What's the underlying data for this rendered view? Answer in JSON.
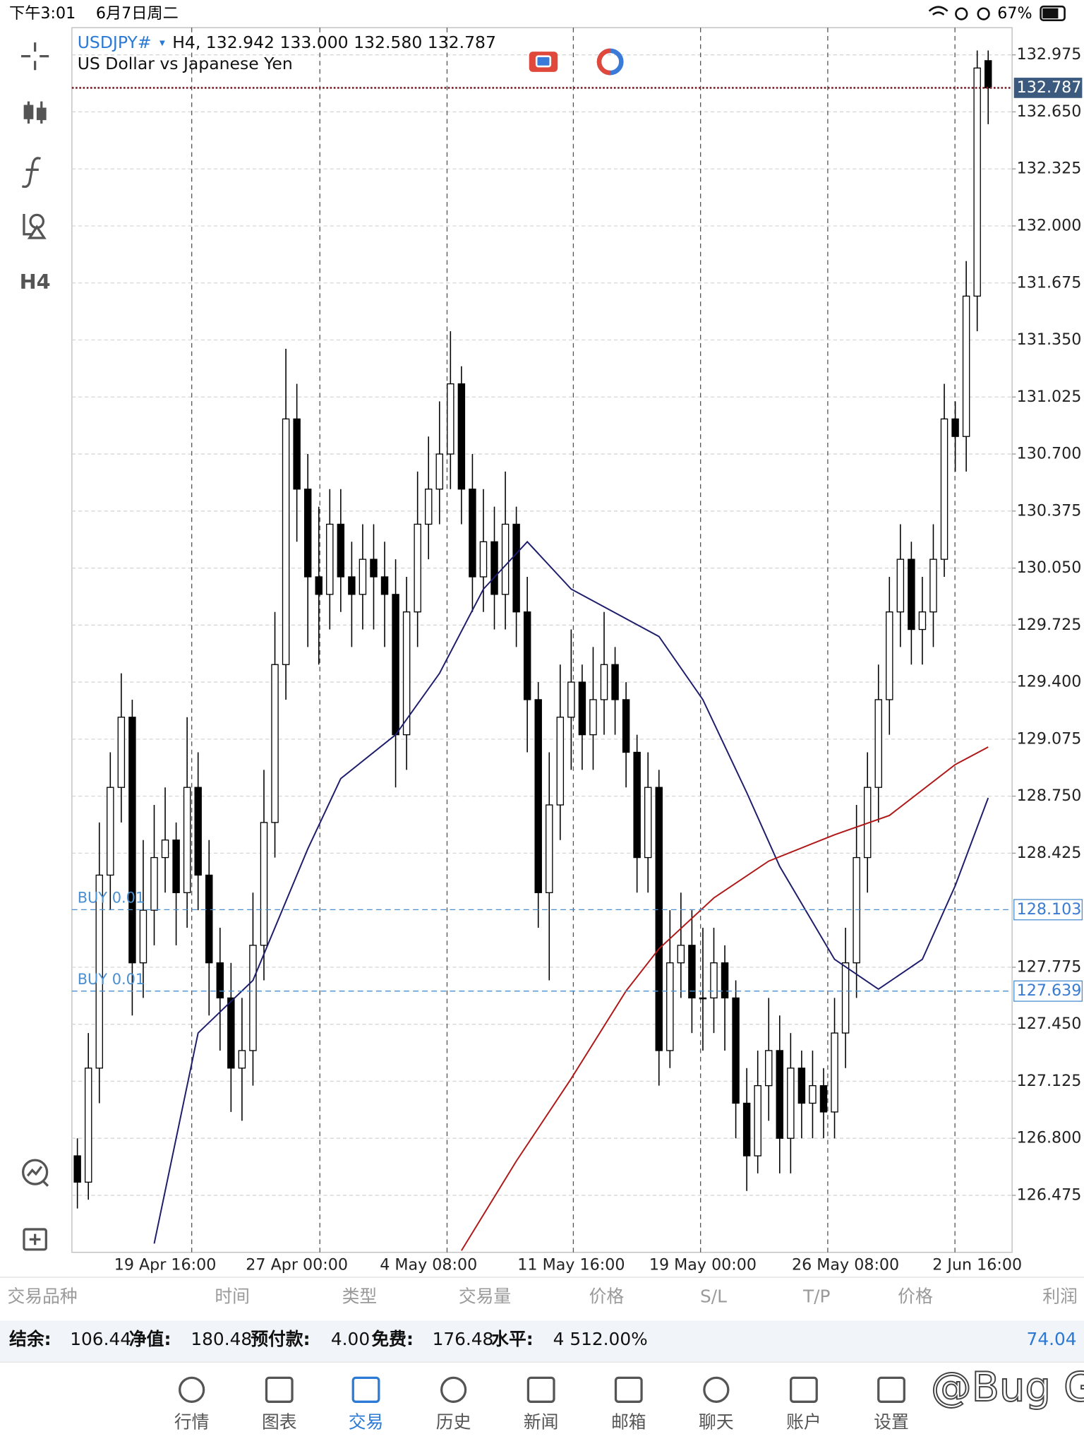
{
  "status_bar": {
    "time": "下午3:01",
    "date": "6月7日周二",
    "battery": "67%"
  },
  "toolbar": {
    "timeframe": "H4"
  },
  "chart_header": {
    "symbol": "USDJPY#",
    "info": "H4, 132.942 133.000 132.580 132.787",
    "description": "US Dollar vs Japanese Yen"
  },
  "chart_data": {
    "type": "candlestick",
    "categories": [
      null,
      null,
      null,
      null,
      null,
      null,
      null,
      null,
      "19 Apr 16:00",
      null,
      null,
      null,
      null,
      null,
      null,
      null,
      null,
      null,
      null,
      null,
      "27 Apr 00:00",
      null,
      null,
      null,
      null,
      null,
      null,
      null,
      null,
      null,
      null,
      null,
      "4 May 08:00",
      null,
      null,
      null,
      null,
      null,
      null,
      null,
      null,
      null,
      null,
      null,
      null,
      "11 May 16:00",
      null,
      null,
      null,
      null,
      null,
      null,
      null,
      null,
      null,
      null,
      null,
      "19 May 00:00",
      null,
      null,
      null,
      null,
      null,
      null,
      null,
      null,
      null,
      null,
      null,
      null,
      "26 May 08:00",
      null,
      null,
      null,
      null,
      null,
      null,
      null,
      null,
      null,
      null,
      null,
      "2 Jun 16:00",
      null
    ],
    "open": [
      126.7,
      126.55,
      127.2,
      128.3,
      128.8,
      129.2,
      127.8,
      128.1,
      128.4,
      128.5,
      128.2,
      128.8,
      128.3,
      127.8,
      127.6,
      127.2,
      127.3,
      127.9,
      128.6,
      129.5,
      130.9,
      130.5,
      130.0,
      129.9,
      130.3,
      130.0,
      129.9,
      130.1,
      130.0,
      129.9,
      129.1,
      129.8,
      130.3,
      130.5,
      130.7,
      131.1,
      130.5,
      130.0,
      130.2,
      129.9,
      130.3,
      129.8,
      129.3,
      128.2,
      128.7,
      129.2,
      129.4,
      129.1,
      129.3,
      129.5,
      129.3,
      129.0,
      128.4,
      128.8,
      127.3,
      127.8,
      127.9,
      127.6,
      127.6,
      127.8,
      127.6,
      127.0,
      126.7,
      127.1,
      127.3,
      126.8,
      127.2,
      127.0,
      127.1,
      126.95,
      127.4,
      127.8,
      128.4,
      128.8,
      129.3,
      129.8,
      130.1,
      129.7,
      129.8,
      130.1,
      130.9,
      130.8,
      131.6,
      132.942
    ],
    "high": [
      126.8,
      127.4,
      128.6,
      129.0,
      129.45,
      129.3,
      128.5,
      128.7,
      128.8,
      128.6,
      129.2,
      129.0,
      128.5,
      128.0,
      127.8,
      127.6,
      128.2,
      128.9,
      129.8,
      131.3,
      131.1,
      130.7,
      130.4,
      130.5,
      130.5,
      130.2,
      130.3,
      130.3,
      130.2,
      130.1,
      130.0,
      130.6,
      130.8,
      131.0,
      131.4,
      131.2,
      130.7,
      130.5,
      130.4,
      130.6,
      130.4,
      130.0,
      129.4,
      129.0,
      129.5,
      129.7,
      129.5,
      129.6,
      129.8,
      129.6,
      129.4,
      129.1,
      129.0,
      128.9,
      128.1,
      128.2,
      128.1,
      128.0,
      128.0,
      127.9,
      127.7,
      127.2,
      127.3,
      127.6,
      127.5,
      127.4,
      127.3,
      127.3,
      127.2,
      127.6,
      128.0,
      128.7,
      129.0,
      129.5,
      130.0,
      130.3,
      130.2,
      130.0,
      130.3,
      131.1,
      131.0,
      131.8,
      133.0,
      133.0
    ],
    "low": [
      126.4,
      126.45,
      127.0,
      128.1,
      128.6,
      127.5,
      127.6,
      127.9,
      128.2,
      127.9,
      128.0,
      128.1,
      127.5,
      127.3,
      126.95,
      126.9,
      127.1,
      127.7,
      128.4,
      129.3,
      130.2,
      129.6,
      129.5,
      129.7,
      129.8,
      129.6,
      129.7,
      129.7,
      129.6,
      128.8,
      128.9,
      129.6,
      130.1,
      130.3,
      130.5,
      130.3,
      129.8,
      129.8,
      129.7,
      129.7,
      129.6,
      129.0,
      128.0,
      127.7,
      128.5,
      128.9,
      128.9,
      128.9,
      129.1,
      129.1,
      128.8,
      128.2,
      128.2,
      127.1,
      127.2,
      127.6,
      127.4,
      127.3,
      127.4,
      127.3,
      126.8,
      126.5,
      126.6,
      126.9,
      126.6,
      126.6,
      126.8,
      126.8,
      126.8,
      126.8,
      127.2,
      127.6,
      128.2,
      128.6,
      129.1,
      129.6,
      129.5,
      129.5,
      129.6,
      130.0,
      130.6,
      130.6,
      131.4,
      132.58
    ],
    "close": [
      126.55,
      127.2,
      128.3,
      128.8,
      129.2,
      127.8,
      128.1,
      128.4,
      128.5,
      128.2,
      128.8,
      128.3,
      127.8,
      127.6,
      127.2,
      127.3,
      127.9,
      128.6,
      129.5,
      130.9,
      130.5,
      130.0,
      129.9,
      130.3,
      130.0,
      129.9,
      130.1,
      130.0,
      129.9,
      129.1,
      129.8,
      130.3,
      130.5,
      130.7,
      131.1,
      130.5,
      130.0,
      130.2,
      129.9,
      130.3,
      129.8,
      129.3,
      128.2,
      128.7,
      129.2,
      129.4,
      129.1,
      129.3,
      129.5,
      129.3,
      129.0,
      128.4,
      128.8,
      127.3,
      127.8,
      127.9,
      127.6,
      127.6,
      127.8,
      127.6,
      127.0,
      126.7,
      127.1,
      127.3,
      126.8,
      127.2,
      127.0,
      127.1,
      126.95,
      127.4,
      127.8,
      128.4,
      128.8,
      129.3,
      129.8,
      130.1,
      129.7,
      129.8,
      130.1,
      130.9,
      130.8,
      131.6,
      132.9,
      132.787
    ],
    "up_color": "#ffffff",
    "down_color": "#000000",
    "moving_averages": [
      {
        "color": "#1c1c6b",
        "x": [
          7,
          11,
          16,
          21,
          24,
          29,
          33,
          37,
          41,
          45,
          53,
          57,
          61,
          64,
          69,
          73,
          77,
          80,
          83
        ],
        "values": [
          126.2,
          127.4,
          127.7,
          128.45,
          128.85,
          129.1,
          129.45,
          129.93,
          130.2,
          129.93,
          129.66,
          129.3,
          128.77,
          128.35,
          127.82,
          127.65,
          127.82,
          128.24,
          128.74
        ]
      },
      {
        "color": "#b01818",
        "x": [
          35,
          40,
          45,
          50,
          53,
          58,
          63,
          69,
          74,
          80,
          83
        ],
        "values": [
          126.16,
          126.67,
          127.14,
          127.64,
          127.88,
          128.17,
          128.38,
          128.53,
          128.64,
          128.93,
          129.03
        ]
      }
    ],
    "price_line": {
      "value": 132.787,
      "color": "#7a1f2a"
    },
    "orders": [
      {
        "label": "BUY 0.01",
        "value": 128.103
      },
      {
        "label": "BUY 0.01",
        "value": 127.639
      }
    ],
    "ylim": [
      126.15,
      133.13
    ],
    "yticks": [
      132.975,
      {
        "value": 132.65,
        "label": "132.650"
      },
      132.325,
      {
        "value": 132,
        "label": "132.000"
      },
      131.675,
      {
        "value": 131.35,
        "label": "131.350"
      },
      131.025,
      {
        "value": 130.7,
        "label": "130.700"
      },
      130.375,
      {
        "value": 130.05,
        "label": "130.050"
      },
      129.725,
      {
        "value": 129.4,
        "label": "129.400"
      },
      129.075,
      {
        "value": 128.75,
        "label": "128.750"
      },
      128.425,
      127.775,
      {
        "value": 127.45,
        "label": "127.450"
      },
      127.125,
      {
        "value": 126.8,
        "label": "126.800"
      },
      126.475
    ],
    "grid": true
  },
  "trade_table": {
    "columns": [
      "交易品种",
      "时间",
      "类型",
      "交易量",
      "价格",
      "S/L",
      "T/P",
      "价格",
      "利润"
    ]
  },
  "account": {
    "items": [
      {
        "label": "结余:",
        "value": "106.44"
      },
      {
        "label": "净值:",
        "value": "180.48"
      },
      {
        "label": "预付款:",
        "value": "4.00"
      },
      {
        "label": "免费:",
        "value": "176.48"
      },
      {
        "label": "水平:",
        "value": "4 512.00%"
      }
    ],
    "profit": "74.04"
  },
  "nav": {
    "items": [
      "行情",
      "图表",
      "交易",
      "历史",
      "新闻",
      "邮箱",
      "聊天",
      "账户",
      "设置"
    ],
    "active": 2
  },
  "watermark": "@Bug G"
}
